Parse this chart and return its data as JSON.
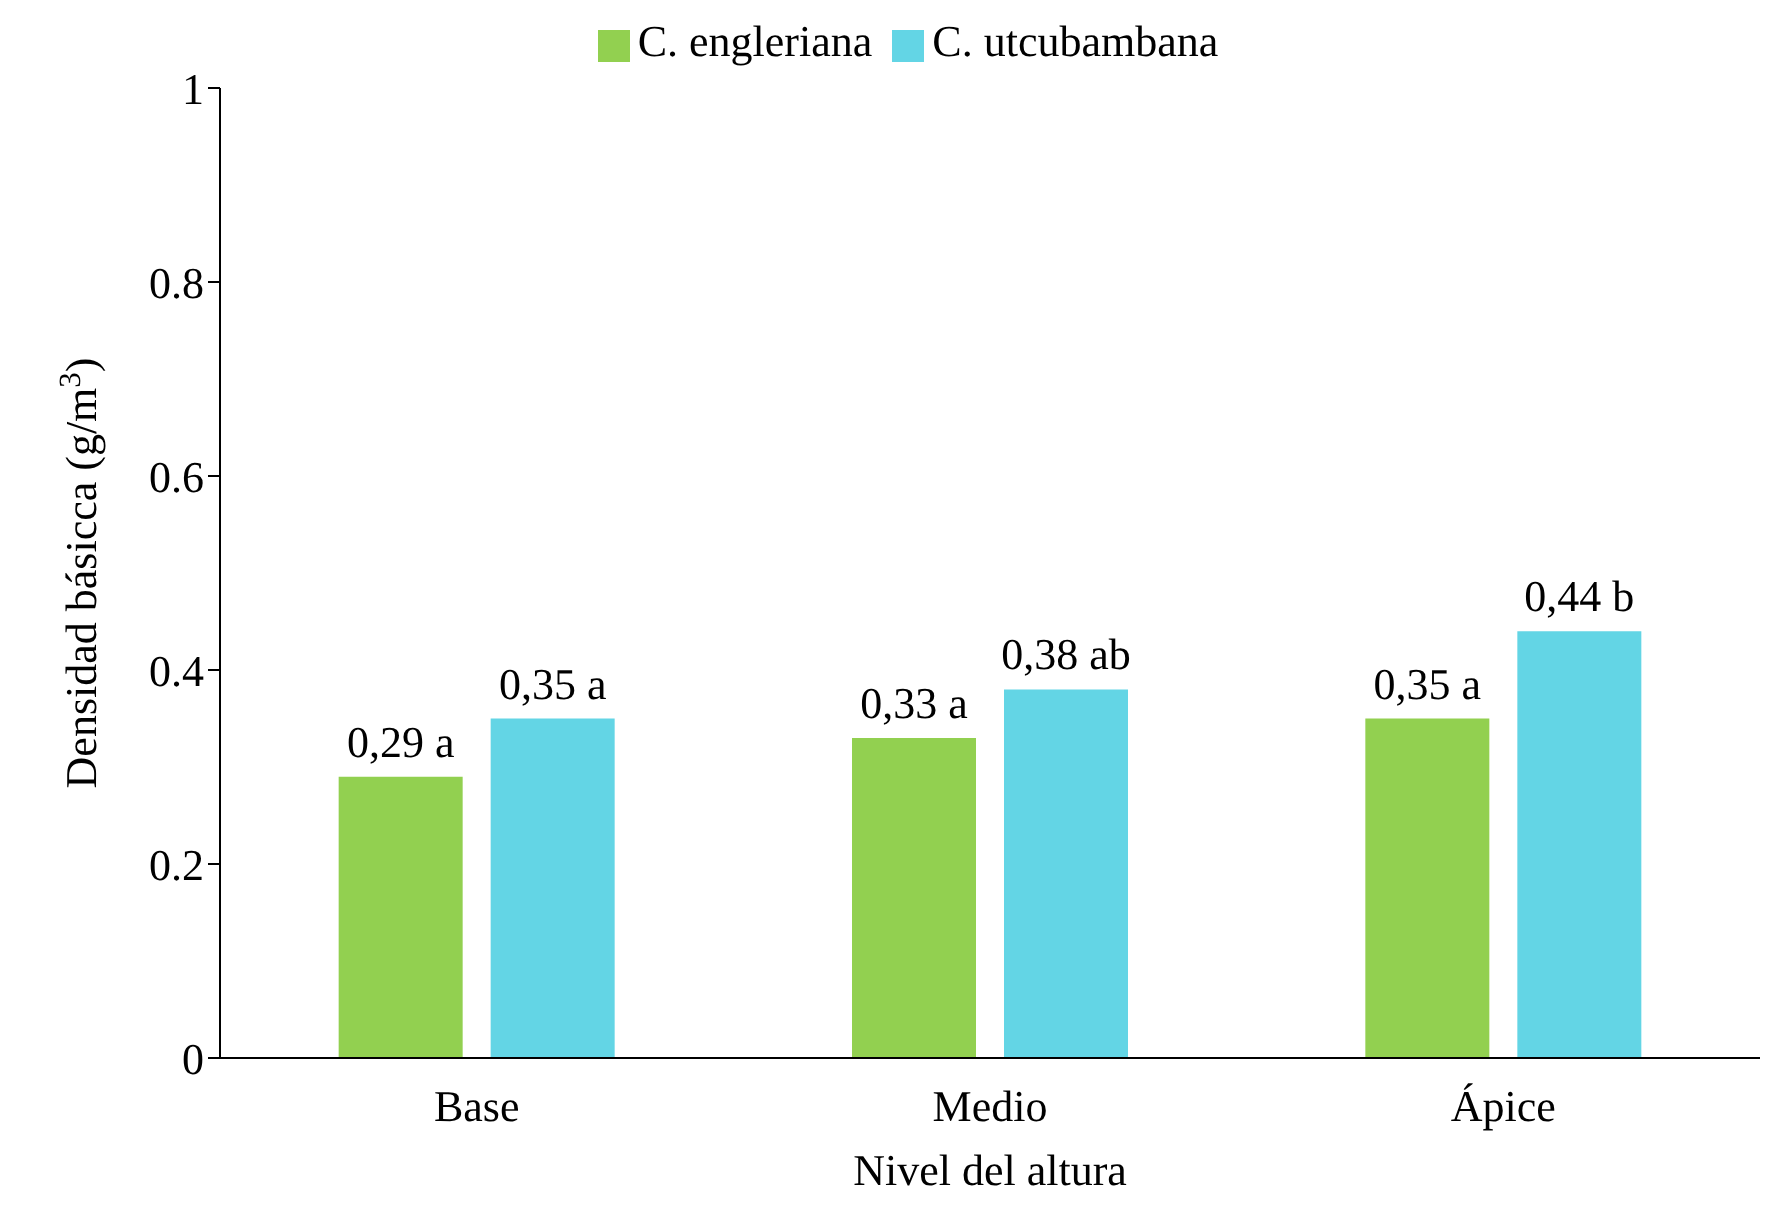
{
  "chart_data": {
    "type": "bar",
    "xlabel": "Nivel del altura",
    "ylabel": "Densidad básicca (g/m$^{3}$)",
    "categories": [
      "Base",
      "Medio",
      "Ápice"
    ],
    "series": [
      {
        "name": "C. engleriana",
        "color": "#92d050",
        "values": [
          0.29,
          0.33,
          0.35
        ],
        "value_labels": [
          "0,29 a",
          "0,33 a",
          "0,35 a"
        ]
      },
      {
        "name": "C. utcubambana",
        "color": "#63d5e5",
        "values": [
          0.35,
          0.38,
          0.44
        ],
        "value_labels": [
          "0,35 a",
          "0,38 ab",
          "0,44 b"
        ]
      }
    ],
    "ylim": [
      0,
      1
    ],
    "yticks": [
      0,
      0.2,
      0.4,
      0.6,
      0.8,
      1
    ],
    "grid": false,
    "legend": "top"
  }
}
